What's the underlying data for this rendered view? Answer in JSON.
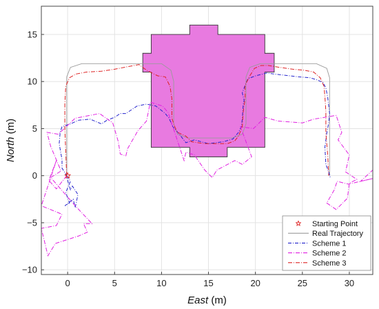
{
  "chart_data": {
    "type": "line",
    "xlabel_main": "East",
    "xlabel_unit": " (m)",
    "ylabel_main": "North",
    "ylabel_unit": " (m)",
    "xlim": [
      -2.8,
      32.5
    ],
    "ylim": [
      -10.5,
      18
    ],
    "xticks": [
      0,
      5,
      10,
      15,
      20,
      25,
      30
    ],
    "yticks": [
      -10,
      -5,
      0,
      5,
      10,
      15
    ],
    "grid": true,
    "legend_position": "bottom-right",
    "colors": {
      "region_fill": "#e87ae0",
      "region_stroke": "#333333",
      "real": "#9a9a9a",
      "scheme1": "#2222cc",
      "scheme2": "#e11ee1",
      "scheme3": "#dd2222",
      "start": "#dd2222"
    },
    "region": {
      "name": "building",
      "points": [
        [
          8.9,
          3
        ],
        [
          8.9,
          13
        ],
        [
          8,
          13
        ],
        [
          8,
          11
        ],
        [
          8,
          11
        ],
        [
          8,
          11
        ],
        [
          8.9,
          11
        ],
        [
          8.9,
          13
        ],
        [
          8,
          13
        ]
      ]
    },
    "region_outline": [
      [
        8.9,
        3
      ],
      [
        8.9,
        11
      ],
      [
        8,
        11
      ],
      [
        8,
        13
      ],
      [
        8.9,
        13
      ],
      [
        8.9,
        15
      ],
      [
        13,
        15
      ],
      [
        13,
        16
      ],
      [
        16,
        16
      ],
      [
        16,
        15
      ],
      [
        21,
        15
      ],
      [
        21,
        13
      ],
      [
        22,
        13
      ],
      [
        22,
        11
      ],
      [
        21,
        11
      ],
      [
        21,
        3
      ],
      [
        17,
        3
      ],
      [
        17,
        2
      ],
      [
        13,
        2
      ],
      [
        13,
        3
      ],
      [
        8.9,
        3
      ]
    ],
    "series": [
      {
        "name": "Real Trajectory",
        "key": "real",
        "dash": "",
        "points": [
          [
            -0.1,
            0
          ],
          [
            -0.1,
            10.5
          ],
          [
            0.3,
            11.5
          ],
          [
            1.5,
            11.9
          ],
          [
            8,
            11.9
          ],
          [
            10,
            11.9
          ],
          [
            11,
            11.2
          ],
          [
            11.3,
            10
          ],
          [
            11.3,
            5.5
          ],
          [
            11.7,
            4.4
          ],
          [
            12.8,
            4
          ],
          [
            17.5,
            4
          ],
          [
            18.6,
            4.4
          ],
          [
            19,
            5.5
          ],
          [
            19,
            10.5
          ],
          [
            19.4,
            11.5
          ],
          [
            20.5,
            11.9
          ],
          [
            26.5,
            11.9
          ],
          [
            27.6,
            11.4
          ],
          [
            27.9,
            10.4
          ],
          [
            27.9,
            0
          ]
        ]
      },
      {
        "name": "Scheme 1",
        "key": "scheme1",
        "dash": "5,2,1,2",
        "points": [
          [
            -0.1,
            0
          ],
          [
            0.3,
            -0.6
          ],
          [
            -0.2,
            -1.8
          ],
          [
            0.2,
            -2.9
          ],
          [
            -0.3,
            -3.2
          ],
          [
            0.6,
            -2.5
          ],
          [
            0.8,
            -3.4
          ],
          [
            1.1,
            -2
          ],
          [
            0.5,
            -1.1
          ],
          [
            0.3,
            -1.5
          ],
          [
            -0.2,
            0.2
          ],
          [
            -0.6,
            0.8
          ],
          [
            -0.6,
            1.7
          ],
          [
            -0.9,
            3.4
          ],
          [
            -0.8,
            4.6
          ],
          [
            -0.6,
            5.2
          ],
          [
            0.3,
            5.5
          ],
          [
            1.2,
            5.9
          ],
          [
            2.4,
            6
          ],
          [
            3.6,
            5.5
          ],
          [
            4.2,
            5.9
          ],
          [
            5,
            6.2
          ],
          [
            5.6,
            6.6
          ],
          [
            6.2,
            6.6
          ],
          [
            7.4,
            7.4
          ],
          [
            8.4,
            7.6
          ],
          [
            9.4,
            7.4
          ],
          [
            9.9,
            7
          ],
          [
            10.4,
            6.6
          ],
          [
            10.8,
            6.1
          ],
          [
            11.2,
            5.2
          ],
          [
            11.9,
            4.4
          ],
          [
            12.6,
            3.5
          ],
          [
            13.5,
            3.8
          ],
          [
            15,
            3.4
          ],
          [
            16.6,
            3.6
          ],
          [
            17.6,
            3.9
          ],
          [
            18.2,
            4.6
          ],
          [
            18.5,
            5.2
          ],
          [
            18.6,
            6
          ],
          [
            18.7,
            7.6
          ],
          [
            18.8,
            8
          ],
          [
            18.6,
            8.8
          ],
          [
            18.9,
            9.6
          ],
          [
            19.2,
            10.3
          ],
          [
            20,
            10.6
          ],
          [
            21.2,
            10.9
          ],
          [
            22.8,
            10.7
          ],
          [
            24.6,
            10.5
          ],
          [
            25.8,
            10.4
          ],
          [
            26.5,
            10.2
          ],
          [
            27.2,
            9.9
          ],
          [
            27.5,
            9.3
          ],
          [
            27.7,
            8.3
          ],
          [
            27.9,
            6.6
          ],
          [
            27.8,
            5.6
          ],
          [
            27.6,
            4.5
          ],
          [
            27.4,
            3
          ],
          [
            27.5,
            1.2
          ],
          [
            27.8,
            0.4
          ],
          [
            28,
            -0.3
          ]
        ]
      },
      {
        "name": "Scheme 2",
        "key": "scheme2",
        "dash": "6,2,1,2",
        "points": [
          [
            -0.1,
            0
          ],
          [
            -1.2,
            -1.4
          ],
          [
            -2,
            -0.5
          ],
          [
            -1.2,
            1.6
          ],
          [
            -2.8,
            -3.2
          ],
          [
            -0.6,
            -4.1
          ],
          [
            -1.2,
            -5.3
          ],
          [
            -2.8,
            -5.6
          ],
          [
            -2.1,
            -8.5
          ],
          [
            -1.3,
            -7.2
          ],
          [
            1.2,
            -6.4
          ],
          [
            2.1,
            -6
          ],
          [
            1.7,
            -5.1
          ],
          [
            2.6,
            -5.1
          ],
          [
            0.9,
            -3.3
          ],
          [
            -1.8,
            -0.2
          ],
          [
            -0.7,
            0.5
          ],
          [
            -1.8,
            3.1
          ],
          [
            -2.2,
            4.6
          ],
          [
            -1,
            4.4
          ],
          [
            0.8,
            6.1
          ],
          [
            3.4,
            6.6
          ],
          [
            4.8,
            5.6
          ],
          [
            5.4,
            3.6
          ],
          [
            5.6,
            2.3
          ],
          [
            6.2,
            2.1
          ],
          [
            6.4,
            2.9
          ],
          [
            7.5,
            4.8
          ],
          [
            8.4,
            5.8
          ],
          [
            8.8,
            7.8
          ],
          [
            10.1,
            7.4
          ],
          [
            10.7,
            6.7
          ],
          [
            12.4,
            1.6
          ],
          [
            12.6,
            2.5
          ],
          [
            13.5,
            2.2
          ],
          [
            14.6,
            0.6
          ],
          [
            15.4,
            -0.2
          ],
          [
            15.9,
            0.6
          ],
          [
            17.8,
            1.6
          ],
          [
            18.6,
            1.2
          ],
          [
            19.6,
            2
          ],
          [
            18.4,
            5.2
          ],
          [
            19.8,
            5
          ],
          [
            21,
            6.2
          ],
          [
            22.4,
            5.8
          ],
          [
            25,
            5.6
          ],
          [
            26.2,
            6
          ],
          [
            28.6,
            6.4
          ],
          [
            29.2,
            4.6
          ],
          [
            28.8,
            3.8
          ],
          [
            30,
            2.2
          ],
          [
            29.6,
            0.4
          ],
          [
            30.8,
            -0.4
          ],
          [
            30,
            -0.8
          ],
          [
            29.8,
            -2.4
          ],
          [
            28.6,
            -3.6
          ],
          [
            27.6,
            -2.9
          ],
          [
            28.4,
            -1.5
          ],
          [
            28.7,
            -0.6
          ],
          [
            29.9,
            -0.9
          ],
          [
            32.5,
            -0.3
          ],
          [
            31.2,
            -0.6
          ],
          [
            32.5,
            0.6
          ]
        ]
      },
      {
        "name": "Scheme 3",
        "key": "scheme3",
        "dash": "6,2,1,2",
        "points": [
          [
            -0.1,
            0
          ],
          [
            -0.2,
            2.5
          ],
          [
            -0.3,
            5
          ],
          [
            -0.3,
            7.6
          ],
          [
            -0.2,
            9.5
          ],
          [
            0.2,
            10.4
          ],
          [
            0.9,
            10.8
          ],
          [
            2,
            11
          ],
          [
            3.6,
            11.1
          ],
          [
            5,
            11.3
          ],
          [
            6,
            11.5
          ],
          [
            7.6,
            11.8
          ],
          [
            8.4,
            11.2
          ],
          [
            9.6,
            10.6
          ],
          [
            10.4,
            10.5
          ],
          [
            10.9,
            9.5
          ],
          [
            11.1,
            8.2
          ],
          [
            11.1,
            6.1
          ],
          [
            11.4,
            5.2
          ],
          [
            11.7,
            4.6
          ],
          [
            12.6,
            4.2
          ],
          [
            13.2,
            3.6
          ],
          [
            14.6,
            3.4
          ],
          [
            16,
            3.4
          ],
          [
            17,
            3.4
          ],
          [
            17.8,
            3.7
          ],
          [
            18.2,
            4.2
          ],
          [
            18.6,
            5.2
          ],
          [
            18.7,
            6.8
          ],
          [
            18.9,
            8.2
          ],
          [
            18.9,
            9.6
          ],
          [
            19.4,
            10.6
          ],
          [
            19.9,
            11.4
          ],
          [
            20.6,
            11.7
          ],
          [
            21.4,
            11.7
          ],
          [
            22.6,
            11.5
          ],
          [
            24,
            11.3
          ],
          [
            25.2,
            11.2
          ],
          [
            26.2,
            11
          ],
          [
            26.9,
            10.4
          ],
          [
            27.3,
            9.5
          ],
          [
            27.4,
            8.4
          ],
          [
            27.5,
            6.8
          ],
          [
            27.5,
            4.5
          ],
          [
            27.7,
            2.2
          ],
          [
            27.8,
            0
          ]
        ]
      }
    ],
    "legend": {
      "start_label": "Starting Point",
      "real_label": "Real Trajectory",
      "scheme1_label": "Scheme 1",
      "scheme2_label": "Scheme 2",
      "scheme3_label": "Scheme 3"
    },
    "start_point": [
      0,
      0
    ]
  }
}
